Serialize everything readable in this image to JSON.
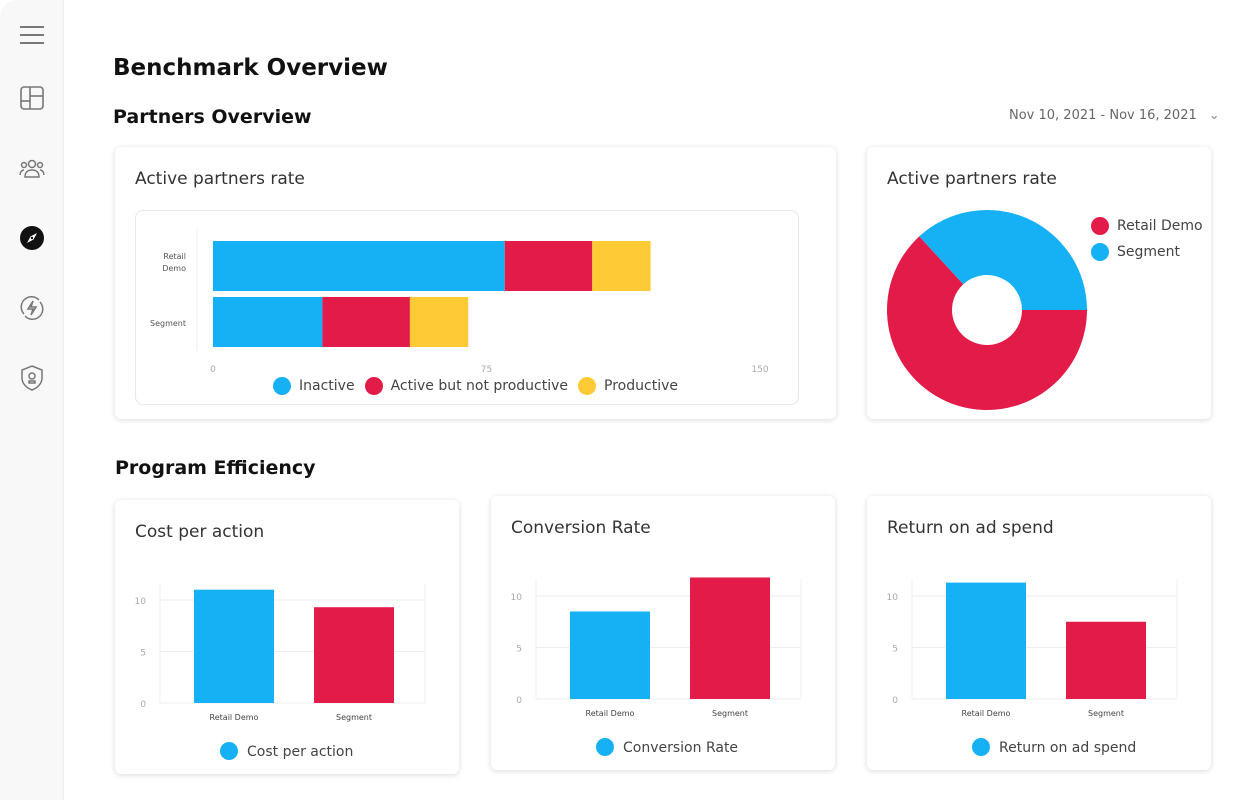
{
  "colors": {
    "inactive": "#16b1f5",
    "active_not_productive": "#e31b48",
    "productive": "#fecb37",
    "retail": "#16b1f5",
    "segment": "#e31b48"
  },
  "sidebar": {
    "items": [
      {
        "icon": "menu-icon"
      },
      {
        "icon": "dashboard-icon"
      },
      {
        "icon": "partners-icon"
      },
      {
        "icon": "compass-icon",
        "active": true
      },
      {
        "icon": "automation-icon"
      },
      {
        "icon": "security-icon"
      }
    ]
  },
  "page": {
    "title": "Benchmark Overview",
    "section1": "Partners Overview",
    "section2": "Program Efficiency",
    "date_range": "Nov 10, 2021 - Nov 16, 2021"
  },
  "chart_data": [
    {
      "type": "bar",
      "orientation": "horizontal",
      "stacked": true,
      "title": "Active partners rate",
      "categories": [
        "Retail Demo",
        "Segment"
      ],
      "xlim": [
        0,
        150
      ],
      "xticks": [
        "0",
        "75",
        "150"
      ],
      "legend_position": "bottom",
      "series": [
        {
          "name": "Inactive",
          "values": [
            80,
            30
          ]
        },
        {
          "name": "Active but not productive",
          "values": [
            24,
            24
          ]
        },
        {
          "name": "Productive",
          "values": [
            16,
            16
          ]
        }
      ]
    },
    {
      "type": "pie",
      "donut": true,
      "title": "Active partners rate",
      "legend_position": "right",
      "categories": [
        "Retail Demo",
        "Segment"
      ],
      "values": [
        120,
        70
      ]
    },
    {
      "type": "bar",
      "title": "Cost per action",
      "categories": [
        "Retail Demo",
        "Segment"
      ],
      "values": [
        11.0,
        9.3
      ],
      "ylim": [
        0,
        12
      ],
      "yticks": [
        "0",
        "5",
        "10"
      ],
      "series_name": "Cost per action"
    },
    {
      "type": "bar",
      "title": "Conversion Rate",
      "categories": [
        "Retail Demo",
        "Segment"
      ],
      "values": [
        8.5,
        11.8
      ],
      "ylim": [
        0,
        13
      ],
      "yticks": [
        "0",
        "5",
        "10"
      ],
      "series_name": "Conversion Rate"
    },
    {
      "type": "bar",
      "title": "Return on ad spend",
      "categories": [
        "Retail Demo",
        "Segment"
      ],
      "values": [
        11.3,
        7.5
      ],
      "ylim": [
        0,
        13
      ],
      "yticks": [
        "0",
        "5",
        "10"
      ],
      "series_name": "Return on ad spend"
    }
  ]
}
